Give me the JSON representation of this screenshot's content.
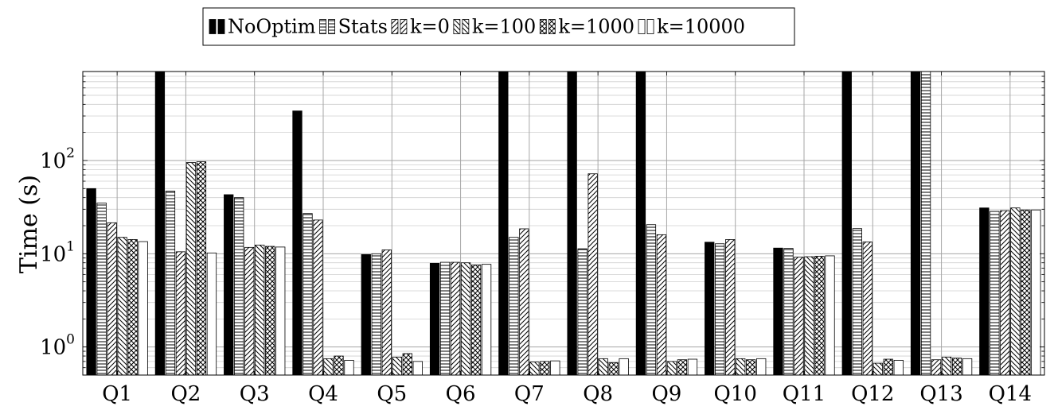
{
  "chart_data": {
    "type": "bar",
    "ylabel": "Time (s)",
    "y_scale": "log",
    "ylim": [
      0.5,
      900
    ],
    "y_ticks": [
      {
        "value": 1,
        "base": "10",
        "exp": "0"
      },
      {
        "value": 10,
        "base": "10",
        "exp": "1"
      },
      {
        "value": 100,
        "base": "10",
        "exp": "2"
      }
    ],
    "grid": "major and minor, both axes",
    "legend_position": "top-center",
    "categories": [
      "Q1",
      "Q2",
      "Q3",
      "Q4",
      "Q5",
      "Q6",
      "Q7",
      "Q8",
      "Q9",
      "Q10",
      "Q11",
      "Q12",
      "Q13",
      "Q14"
    ],
    "series": [
      {
        "name": "NoOptim",
        "pattern": "solid-black",
        "values": [
          50,
          900,
          43,
          340,
          9.8,
          7.9,
          900,
          900,
          900,
          13.3,
          11.5,
          900,
          900,
          31
        ]
      },
      {
        "name": "Stats",
        "pattern": "horizontal-lines",
        "values": [
          35,
          47,
          40,
          27,
          10,
          8.1,
          15,
          11.3,
          20.5,
          12.8,
          11.4,
          18.6,
          900,
          28.5
        ]
      },
      {
        "name": "k=0",
        "pattern": "diagonal-lines",
        "values": [
          21.5,
          10.5,
          11.7,
          23,
          11,
          8.1,
          18.5,
          72,
          16,
          14.2,
          9.2,
          13.4,
          0.73,
          29
        ]
      },
      {
        "name": "k=100",
        "pattern": "reverse-diagonal-lines",
        "values": [
          15,
          95,
          12.4,
          0.75,
          0.78,
          8,
          0.69,
          0.75,
          0.7,
          0.75,
          9.3,
          0.67,
          0.78,
          31
        ]
      },
      {
        "name": "k=1000",
        "pattern": "crosshatch",
        "values": [
          14.2,
          97,
          12,
          0.8,
          0.85,
          7.6,
          0.7,
          0.68,
          0.73,
          0.73,
          9.4,
          0.74,
          0.76,
          29.5
        ]
      },
      {
        "name": "k=10000",
        "pattern": "white",
        "values": [
          13.5,
          10.2,
          11.8,
          0.72,
          0.7,
          7.7,
          0.71,
          0.75,
          0.74,
          0.75,
          9.5,
          0.72,
          0.75,
          29.5
        ]
      }
    ]
  }
}
